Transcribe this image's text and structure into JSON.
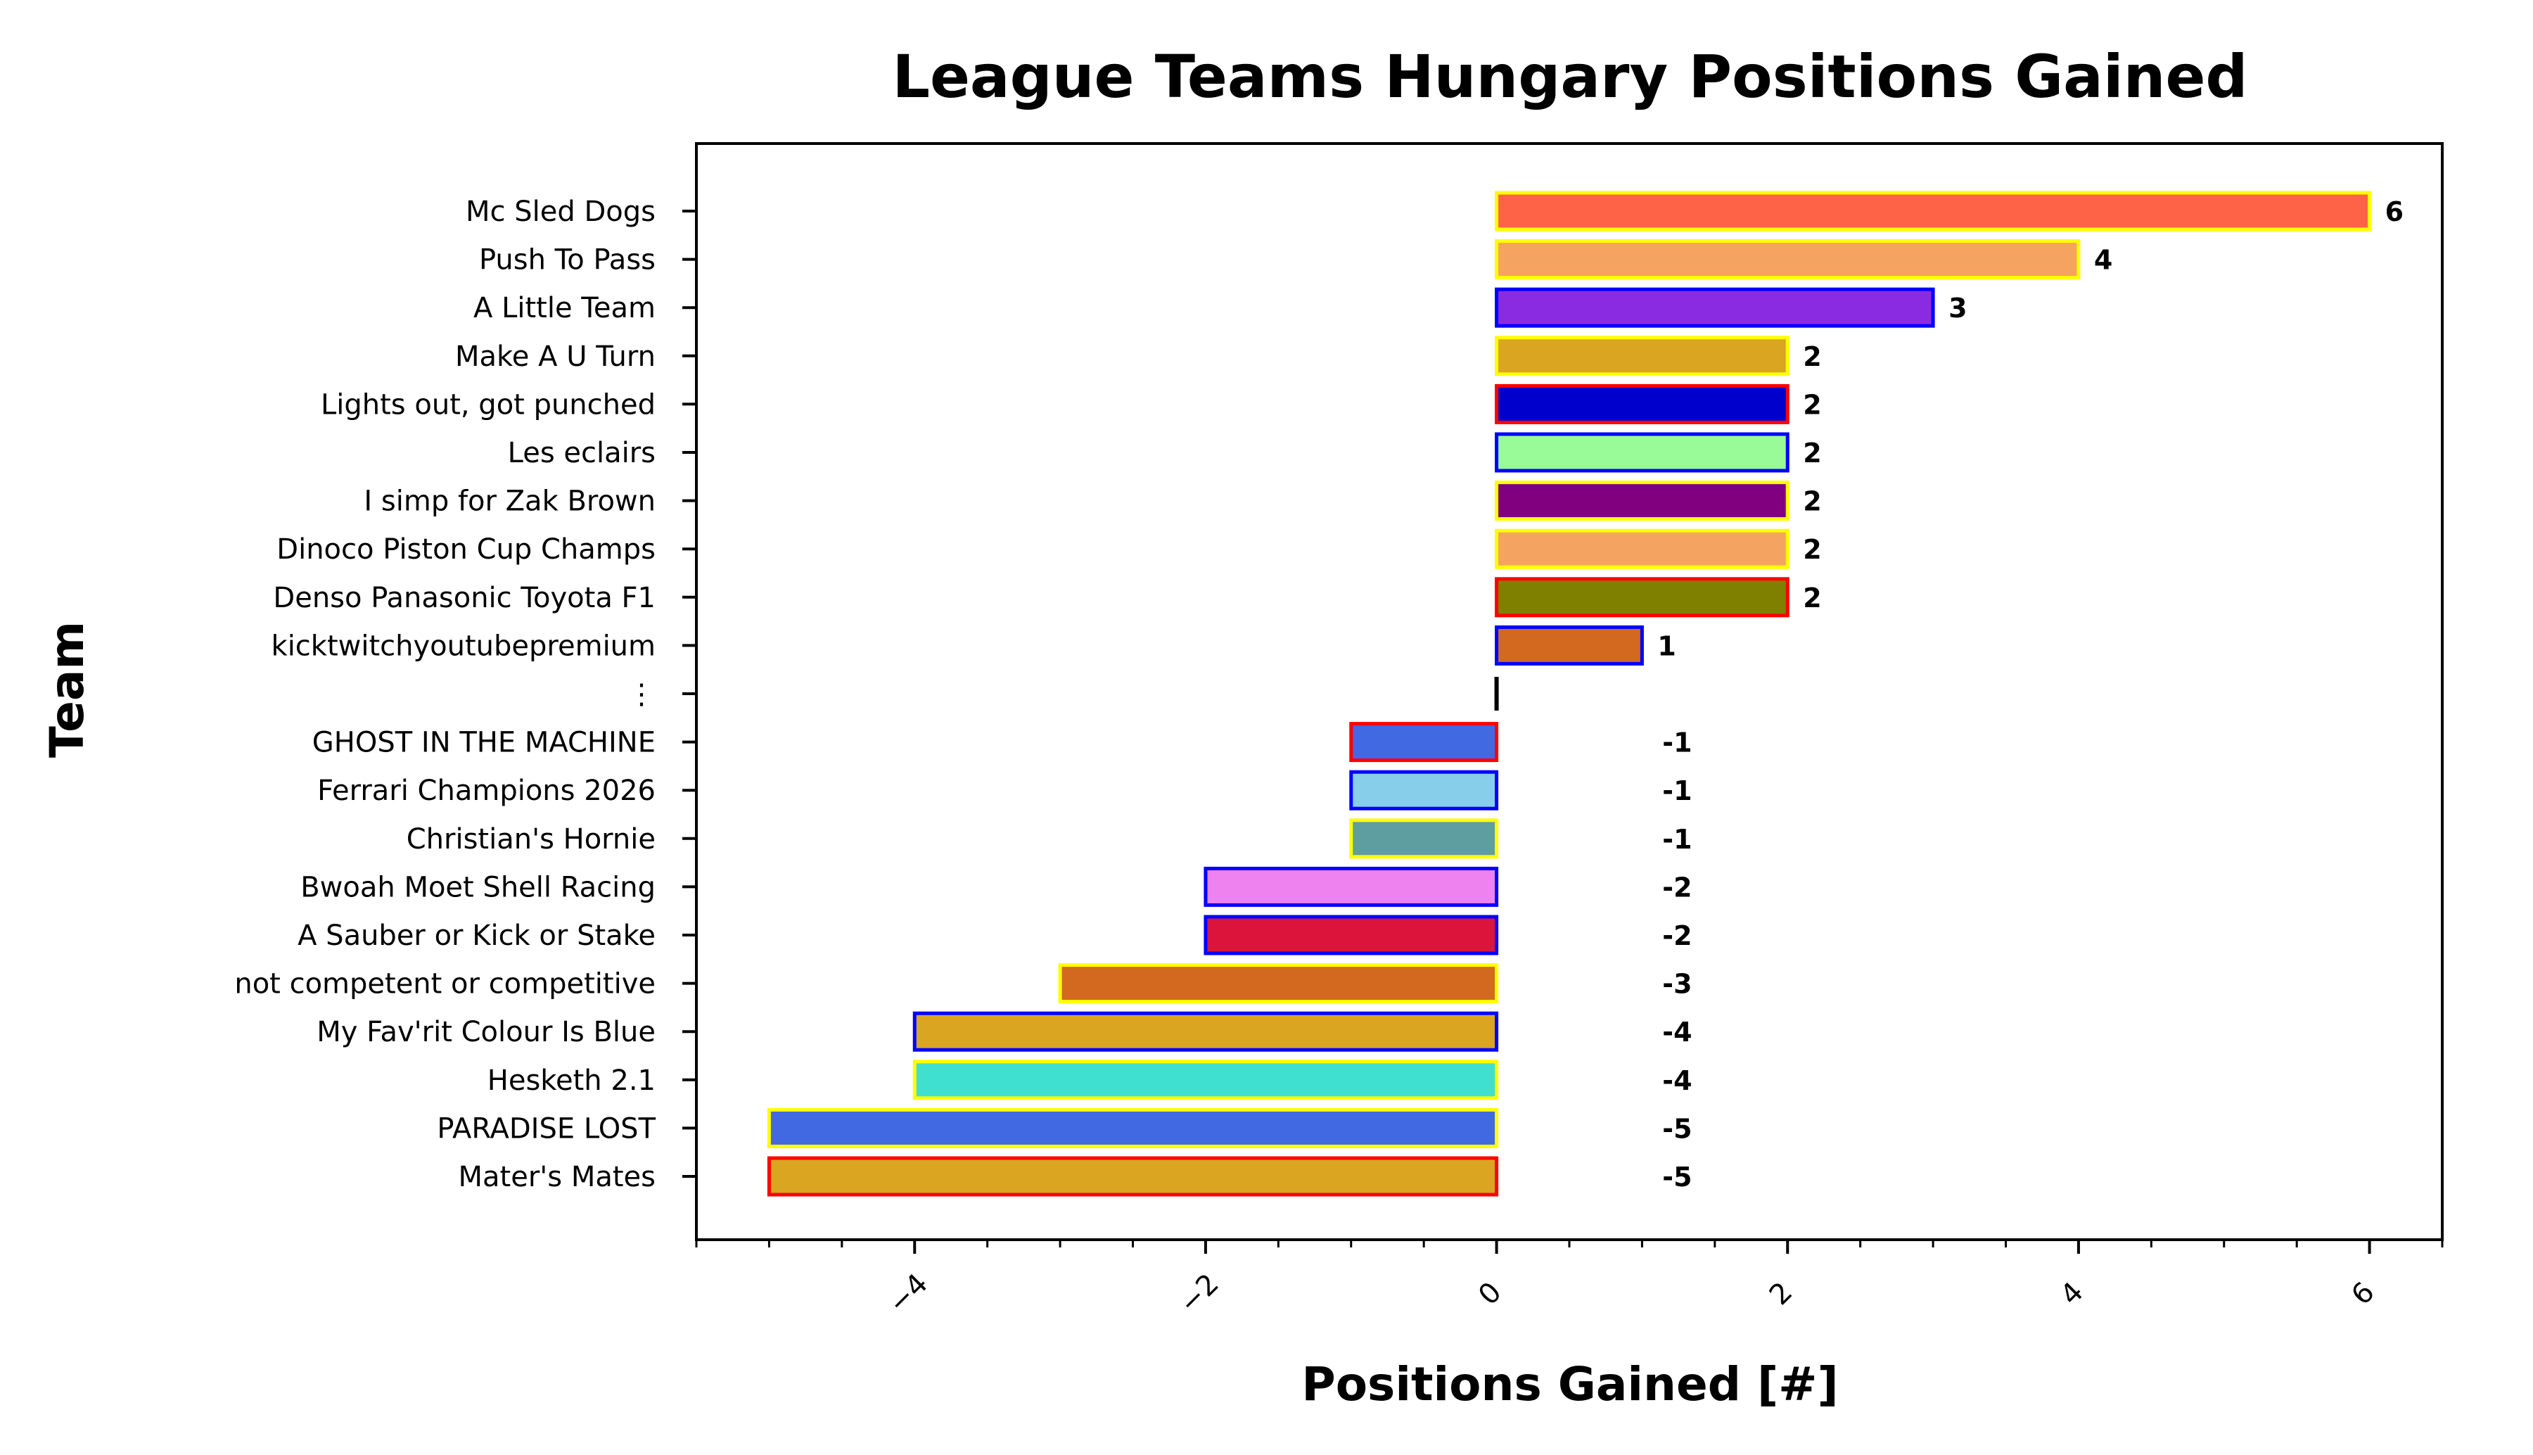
{
  "chart_data": {
    "type": "bar",
    "orientation": "horizontal",
    "title": "League Teams Hungary Positions Gained",
    "xlabel": "Positions Gained [#]",
    "ylabel": "Team",
    "xlim": [
      -5.5,
      6.5
    ],
    "xticks": [
      -4,
      -2,
      0,
      2,
      4,
      6
    ],
    "grid": false,
    "legend": "none",
    "categories": [
      "Mc Sled Dogs",
      "Push To Pass",
      "A Little Team",
      "Make A U Turn",
      "Lights out, got punched",
      "Les eclairs",
      "I simp for Zak Brown",
      "Dinoco Piston Cup Champs",
      "Denso Panasonic Toyota F1",
      "kicktwitchyoutubepremium",
      "⋮",
      "GHOST IN THE MACHINE",
      "Ferrari Champions 2026",
      "Christian's Hornie",
      "Bwoah Moet Shell Racing",
      "A Sauber or Kick or Stake",
      "not competent or competitive",
      "My Fav'rit Colour Is Blue",
      "Hesketh 2.1",
      "PARADISE LOST",
      "Mater's Mates"
    ],
    "values": [
      6,
      4,
      3,
      2,
      2,
      2,
      2,
      2,
      2,
      1,
      0,
      -1,
      -1,
      -1,
      -2,
      -2,
      -3,
      -4,
      -4,
      -5,
      -5
    ],
    "data_labels": [
      "6",
      "4",
      "3",
      "2",
      "2",
      "2",
      "2",
      "2",
      "2",
      "1",
      "",
      "-1",
      "-1",
      "-1",
      "-2",
      "-2",
      "-3",
      "-4",
      "-4",
      "-5",
      "-5"
    ],
    "fill_colors": [
      "#FF6347",
      "#F4A460",
      "#8A2BE2",
      "#DAA520",
      "#0000CD",
      "#98FB98",
      "#800080",
      "#F4A460",
      "#808000",
      "#D2691E",
      "#000000",
      "#4169E1",
      "#87CEEB",
      "#5F9EA0",
      "#EE82EE",
      "#DC143C",
      "#D2691E",
      "#DAA520",
      "#40E0D0",
      "#4169E1",
      "#DAA520"
    ],
    "edge_colors": [
      "#FFFF00",
      "#FFFF00",
      "#0000FF",
      "#FFFF00",
      "#FF0000",
      "#0000FF",
      "#FFFF00",
      "#FFFF00",
      "#FF0000",
      "#0000FF",
      "#000000",
      "#FF0000",
      "#0000FF",
      "#FFFF00",
      "#0000FF",
      "#0000FF",
      "#FFFF00",
      "#0000FF",
      "#FFFF00",
      "#FFFF00",
      "#FF0000"
    ]
  }
}
